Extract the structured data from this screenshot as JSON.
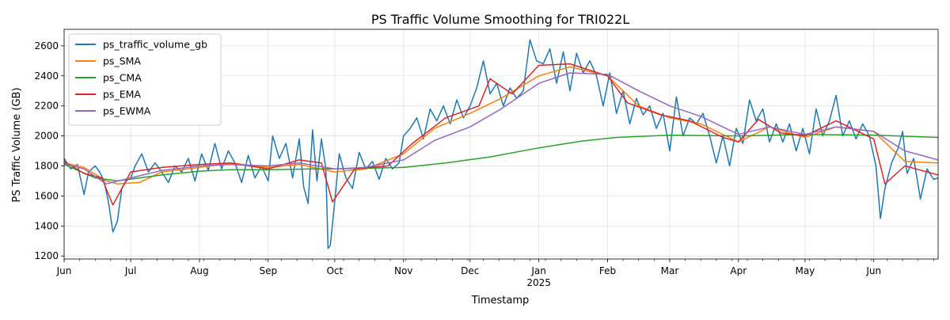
{
  "chart_data": {
    "type": "line",
    "title": "PS Traffic Volume Smoothing for TRI022L",
    "xlabel": "Timestamp",
    "ylabel": "PS Traffic Volume (GB)",
    "ylim": [
      1180,
      2710
    ],
    "yticks": [
      1200,
      1400,
      1600,
      1800,
      2000,
      2200,
      2400,
      2600
    ],
    "x_range": [
      "2024-06-01",
      "2025-06-30"
    ],
    "xticks": [
      {
        "date": "2024-06-01",
        "label": "Jun",
        "sublabel": ""
      },
      {
        "date": "2024-07-01",
        "label": "Jul",
        "sublabel": ""
      },
      {
        "date": "2024-08-01",
        "label": "Aug",
        "sublabel": ""
      },
      {
        "date": "2024-09-01",
        "label": "Sep",
        "sublabel": ""
      },
      {
        "date": "2024-10-01",
        "label": "Oct",
        "sublabel": ""
      },
      {
        "date": "2024-11-01",
        "label": "Nov",
        "sublabel": ""
      },
      {
        "date": "2024-12-01",
        "label": "Dec",
        "sublabel": ""
      },
      {
        "date": "2025-01-01",
        "label": "Jan",
        "sublabel": "2025"
      },
      {
        "date": "2025-02-01",
        "label": "Feb",
        "sublabel": ""
      },
      {
        "date": "2025-03-01",
        "label": "Mar",
        "sublabel": ""
      },
      {
        "date": "2025-04-01",
        "label": "Apr",
        "sublabel": ""
      },
      {
        "date": "2025-05-01",
        "label": "May",
        "sublabel": ""
      },
      {
        "date": "2025-06-01",
        "label": "Jun",
        "sublabel": ""
      }
    ],
    "grid": true,
    "legend_position": "top-left",
    "series": [
      {
        "name": "ps_traffic_volume_gb",
        "color": "#1f77b4",
        "points": [
          [
            "2024-06-01",
            1850
          ],
          [
            "2024-06-04",
            1780
          ],
          [
            "2024-06-07",
            1810
          ],
          [
            "2024-06-10",
            1610
          ],
          [
            "2024-06-12",
            1760
          ],
          [
            "2024-06-15",
            1800
          ],
          [
            "2024-06-17",
            1760
          ],
          [
            "2024-06-19",
            1700
          ],
          [
            "2024-06-21",
            1560
          ],
          [
            "2024-06-23",
            1360
          ],
          [
            "2024-06-25",
            1430
          ],
          [
            "2024-06-27",
            1650
          ],
          [
            "2024-06-29",
            1700
          ],
          [
            "2024-07-01",
            1720
          ],
          [
            "2024-07-03",
            1800
          ],
          [
            "2024-07-06",
            1880
          ],
          [
            "2024-07-09",
            1760
          ],
          [
            "2024-07-12",
            1820
          ],
          [
            "2024-07-15",
            1760
          ],
          [
            "2024-07-18",
            1690
          ],
          [
            "2024-07-21",
            1800
          ],
          [
            "2024-07-24",
            1760
          ],
          [
            "2024-07-27",
            1850
          ],
          [
            "2024-07-30",
            1700
          ],
          [
            "2024-08-02",
            1880
          ],
          [
            "2024-08-05",
            1770
          ],
          [
            "2024-08-08",
            1950
          ],
          [
            "2024-08-11",
            1780
          ],
          [
            "2024-08-14",
            1900
          ],
          [
            "2024-08-17",
            1820
          ],
          [
            "2024-08-20",
            1690
          ],
          [
            "2024-08-23",
            1870
          ],
          [
            "2024-08-26",
            1720
          ],
          [
            "2024-08-29",
            1800
          ],
          [
            "2024-09-01",
            1700
          ],
          [
            "2024-09-03",
            2000
          ],
          [
            "2024-09-06",
            1850
          ],
          [
            "2024-09-09",
            1950
          ],
          [
            "2024-09-12",
            1720
          ],
          [
            "2024-09-15",
            1980
          ],
          [
            "2024-09-17",
            1660
          ],
          [
            "2024-09-19",
            1550
          ],
          [
            "2024-09-21",
            2040
          ],
          [
            "2024-09-23",
            1700
          ],
          [
            "2024-09-25",
            1980
          ],
          [
            "2024-09-27",
            1780
          ],
          [
            "2024-09-28",
            1250
          ],
          [
            "2024-09-29",
            1270
          ],
          [
            "2024-10-01",
            1560
          ],
          [
            "2024-10-03",
            1880
          ],
          [
            "2024-10-06",
            1720
          ],
          [
            "2024-10-09",
            1650
          ],
          [
            "2024-10-12",
            1890
          ],
          [
            "2024-10-15",
            1780
          ],
          [
            "2024-10-18",
            1830
          ],
          [
            "2024-10-21",
            1710
          ],
          [
            "2024-10-24",
            1850
          ],
          [
            "2024-10-27",
            1780
          ],
          [
            "2024-10-30",
            1820
          ],
          [
            "2024-11-01",
            2000
          ],
          [
            "2024-11-04",
            2050
          ],
          [
            "2024-11-07",
            2120
          ],
          [
            "2024-11-10",
            1980
          ],
          [
            "2024-11-13",
            2180
          ],
          [
            "2024-11-16",
            2100
          ],
          [
            "2024-11-19",
            2200
          ],
          [
            "2024-11-22",
            2080
          ],
          [
            "2024-11-25",
            2240
          ],
          [
            "2024-11-28",
            2120
          ],
          [
            "2024-12-01",
            2200
          ],
          [
            "2024-12-04",
            2320
          ],
          [
            "2024-12-07",
            2500
          ],
          [
            "2024-12-10",
            2280
          ],
          [
            "2024-12-13",
            2350
          ],
          [
            "2024-12-16",
            2200
          ],
          [
            "2024-12-19",
            2320
          ],
          [
            "2024-12-22",
            2250
          ],
          [
            "2024-12-25",
            2300
          ],
          [
            "2024-12-28",
            2640
          ],
          [
            "2024-12-31",
            2500
          ],
          [
            "2025-01-03",
            2480
          ],
          [
            "2025-01-06",
            2580
          ],
          [
            "2025-01-09",
            2350
          ],
          [
            "2025-01-12",
            2560
          ],
          [
            "2025-01-15",
            2300
          ],
          [
            "2025-01-18",
            2550
          ],
          [
            "2025-01-21",
            2420
          ],
          [
            "2025-01-24",
            2500
          ],
          [
            "2025-01-27",
            2400
          ],
          [
            "2025-01-30",
            2200
          ],
          [
            "2025-02-02",
            2420
          ],
          [
            "2025-02-05",
            2150
          ],
          [
            "2025-02-08",
            2300
          ],
          [
            "2025-02-11",
            2080
          ],
          [
            "2025-02-14",
            2250
          ],
          [
            "2025-02-17",
            2140
          ],
          [
            "2025-02-20",
            2200
          ],
          [
            "2025-02-23",
            2050
          ],
          [
            "2025-02-26",
            2150
          ],
          [
            "2025-03-01",
            1900
          ],
          [
            "2025-03-04",
            2260
          ],
          [
            "2025-03-07",
            2000
          ],
          [
            "2025-03-10",
            2120
          ],
          [
            "2025-03-13",
            2080
          ],
          [
            "2025-03-16",
            2150
          ],
          [
            "2025-03-19",
            2000
          ],
          [
            "2025-03-22",
            1820
          ],
          [
            "2025-03-25",
            2000
          ],
          [
            "2025-03-28",
            1800
          ],
          [
            "2025-03-31",
            2050
          ],
          [
            "2025-04-03",
            1950
          ],
          [
            "2025-04-06",
            2240
          ],
          [
            "2025-04-09",
            2100
          ],
          [
            "2025-04-12",
            2180
          ],
          [
            "2025-04-15",
            1960
          ],
          [
            "2025-04-18",
            2080
          ],
          [
            "2025-04-21",
            1960
          ],
          [
            "2025-04-24",
            2080
          ],
          [
            "2025-04-27",
            1900
          ],
          [
            "2025-04-30",
            2050
          ],
          [
            "2025-05-03",
            1880
          ],
          [
            "2025-05-06",
            2180
          ],
          [
            "2025-05-09",
            2000
          ],
          [
            "2025-05-12",
            2100
          ],
          [
            "2025-05-15",
            2270
          ],
          [
            "2025-05-18",
            2000
          ],
          [
            "2025-05-21",
            2100
          ],
          [
            "2025-05-24",
            1980
          ],
          [
            "2025-05-27",
            2080
          ],
          [
            "2025-05-30",
            2000
          ],
          [
            "2025-06-02",
            1800
          ],
          [
            "2025-06-04",
            1450
          ],
          [
            "2025-06-06",
            1650
          ],
          [
            "2025-06-09",
            1820
          ],
          [
            "2025-06-12",
            1920
          ],
          [
            "2025-06-14",
            2030
          ],
          [
            "2025-06-16",
            1750
          ],
          [
            "2025-06-19",
            1850
          ],
          [
            "2025-06-22",
            1580
          ],
          [
            "2025-06-25",
            1780
          ],
          [
            "2025-06-28",
            1710
          ],
          [
            "2025-06-30",
            1720
          ]
        ]
      },
      {
        "name": "ps_SMA",
        "color": "#ff7f0e",
        "points": [
          [
            "2024-06-01",
            1820
          ],
          [
            "2024-06-10",
            1790
          ],
          [
            "2024-06-20",
            1700
          ],
          [
            "2024-06-25",
            1680
          ],
          [
            "2024-07-05",
            1690
          ],
          [
            "2024-07-15",
            1760
          ],
          [
            "2024-08-01",
            1790
          ],
          [
            "2024-08-15",
            1820
          ],
          [
            "2024-09-01",
            1790
          ],
          [
            "2024-09-15",
            1810
          ],
          [
            "2024-10-01",
            1760
          ],
          [
            "2024-10-15",
            1780
          ],
          [
            "2024-11-01",
            1880
          ],
          [
            "2024-11-15",
            2050
          ],
          [
            "2024-12-01",
            2150
          ],
          [
            "2024-12-15",
            2250
          ],
          [
            "2025-01-01",
            2400
          ],
          [
            "2025-01-15",
            2460
          ],
          [
            "2025-02-01",
            2400
          ],
          [
            "2025-02-15",
            2200
          ],
          [
            "2025-03-01",
            2120
          ],
          [
            "2025-03-15",
            2080
          ],
          [
            "2025-04-01",
            1960
          ],
          [
            "2025-04-15",
            2060
          ],
          [
            "2025-05-01",
            1990
          ],
          [
            "2025-05-15",
            2060
          ],
          [
            "2025-06-01",
            2030
          ],
          [
            "2025-06-15",
            1830
          ],
          [
            "2025-06-30",
            1820
          ]
        ]
      },
      {
        "name": "ps_CMA",
        "color": "#2ca02c",
        "points": [
          [
            "2024-06-01",
            1810
          ],
          [
            "2024-06-15",
            1720
          ],
          [
            "2024-06-25",
            1700
          ],
          [
            "2024-07-15",
            1740
          ],
          [
            "2024-08-01",
            1765
          ],
          [
            "2024-08-15",
            1775
          ],
          [
            "2024-09-01",
            1775
          ],
          [
            "2024-09-20",
            1780
          ],
          [
            "2024-10-01",
            1780
          ],
          [
            "2024-11-01",
            1790
          ],
          [
            "2024-11-20",
            1820
          ],
          [
            "2024-12-10",
            1860
          ],
          [
            "2025-01-01",
            1920
          ],
          [
            "2025-01-20",
            1965
          ],
          [
            "2025-02-05",
            1990
          ],
          [
            "2025-03-01",
            2005
          ],
          [
            "2025-04-01",
            2000
          ],
          [
            "2025-05-01",
            2010
          ],
          [
            "2025-06-01",
            2005
          ],
          [
            "2025-06-30",
            1990
          ]
        ]
      },
      {
        "name": "ps_EMA",
        "color": "#d62728",
        "points": [
          [
            "2024-06-01",
            1830
          ],
          [
            "2024-06-10",
            1750
          ],
          [
            "2024-06-18",
            1720
          ],
          [
            "2024-06-23",
            1540
          ],
          [
            "2024-07-01",
            1760
          ],
          [
            "2024-07-15",
            1790
          ],
          [
            "2024-08-01",
            1810
          ],
          [
            "2024-08-15",
            1820
          ],
          [
            "2024-09-01",
            1780
          ],
          [
            "2024-09-15",
            1840
          ],
          [
            "2024-09-25",
            1820
          ],
          [
            "2024-09-30",
            1560
          ],
          [
            "2024-10-10",
            1780
          ],
          [
            "2024-10-25",
            1800
          ],
          [
            "2024-11-05",
            1950
          ],
          [
            "2024-11-20",
            2120
          ],
          [
            "2024-12-05",
            2200
          ],
          [
            "2024-12-10",
            2380
          ],
          [
            "2024-12-20",
            2280
          ],
          [
            "2025-01-01",
            2470
          ],
          [
            "2025-01-15",
            2480
          ],
          [
            "2025-02-01",
            2400
          ],
          [
            "2025-02-10",
            2220
          ],
          [
            "2025-02-25",
            2140
          ],
          [
            "2025-03-10",
            2100
          ],
          [
            "2025-03-25",
            1990
          ],
          [
            "2025-04-01",
            1960
          ],
          [
            "2025-04-10",
            2110
          ],
          [
            "2025-04-20",
            2020
          ],
          [
            "2025-05-01",
            2000
          ],
          [
            "2025-05-15",
            2100
          ],
          [
            "2025-06-01",
            1980
          ],
          [
            "2025-06-06",
            1680
          ],
          [
            "2025-06-15",
            1800
          ],
          [
            "2025-06-30",
            1740
          ]
        ]
      },
      {
        "name": "ps_EWMA",
        "color": "#9467bd",
        "points": [
          [
            "2024-06-01",
            1815
          ],
          [
            "2024-06-10",
            1780
          ],
          [
            "2024-06-20",
            1680
          ],
          [
            "2024-07-01",
            1720
          ],
          [
            "2024-07-15",
            1770
          ],
          [
            "2024-08-01",
            1800
          ],
          [
            "2024-08-15",
            1810
          ],
          [
            "2024-09-01",
            1800
          ],
          [
            "2024-09-15",
            1820
          ],
          [
            "2024-10-01",
            1780
          ],
          [
            "2024-10-15",
            1790
          ],
          [
            "2024-11-01",
            1840
          ],
          [
            "2024-11-15",
            1970
          ],
          [
            "2024-12-01",
            2060
          ],
          [
            "2024-12-15",
            2180
          ],
          [
            "2025-01-01",
            2350
          ],
          [
            "2025-01-15",
            2420
          ],
          [
            "2025-02-01",
            2410
          ],
          [
            "2025-02-15",
            2300
          ],
          [
            "2025-03-01",
            2200
          ],
          [
            "2025-03-15",
            2130
          ],
          [
            "2025-04-01",
            2010
          ],
          [
            "2025-04-15",
            2060
          ],
          [
            "2025-05-01",
            2010
          ],
          [
            "2025-05-15",
            2060
          ],
          [
            "2025-06-01",
            2030
          ],
          [
            "2025-06-15",
            1900
          ],
          [
            "2025-06-30",
            1840
          ]
        ]
      }
    ]
  }
}
